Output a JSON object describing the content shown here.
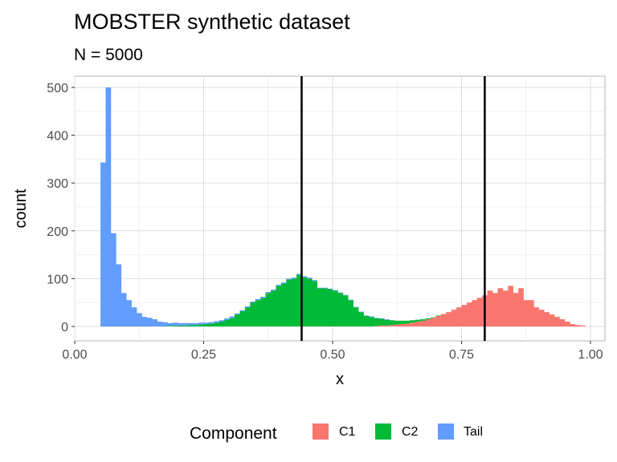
{
  "chart_data": {
    "type": "bar",
    "title": "MOBSTER synthetic dataset",
    "subtitle": "N = 5000",
    "xlabel": "x",
    "ylabel": "count",
    "xlim": [
      0.0,
      1.0
    ],
    "ylim": [
      0,
      500
    ],
    "x_ticks": [
      "0.00",
      "0.25",
      "0.50",
      "0.75",
      "1.00"
    ],
    "y_ticks": [
      "0",
      "100",
      "200",
      "300",
      "400",
      "500"
    ],
    "grid": true,
    "bin_width": 0.01,
    "legend": {
      "title": "Component",
      "position": "bottom"
    },
    "series": [
      {
        "name": "C1",
        "color": "#F8766D",
        "bin_starts": [
          0.58,
          0.59,
          0.6,
          0.61,
          0.62,
          0.63,
          0.64,
          0.65,
          0.66,
          0.67,
          0.68,
          0.69,
          0.7,
          0.71,
          0.72,
          0.73,
          0.74,
          0.75,
          0.76,
          0.77,
          0.78,
          0.79,
          0.8,
          0.81,
          0.82,
          0.83,
          0.84,
          0.85,
          0.86,
          0.87,
          0.88,
          0.89,
          0.9,
          0.91,
          0.92,
          0.93,
          0.94,
          0.95,
          0.96,
          0.97,
          0.98
        ],
        "counts": [
          1,
          2,
          2,
          3,
          4,
          5,
          6,
          8,
          10,
          12,
          15,
          18,
          22,
          26,
          30,
          35,
          40,
          45,
          50,
          55,
          60,
          65,
          75,
          70,
          80,
          75,
          85,
          70,
          80,
          55,
          55,
          40,
          35,
          30,
          25,
          20,
          15,
          10,
          5,
          3,
          2
        ]
      },
      {
        "name": "C2",
        "color": "#00BA38",
        "bin_starts": [
          0.17,
          0.18,
          0.19,
          0.2,
          0.21,
          0.22,
          0.23,
          0.24,
          0.25,
          0.26,
          0.27,
          0.28,
          0.29,
          0.3,
          0.31,
          0.32,
          0.33,
          0.34,
          0.35,
          0.36,
          0.37,
          0.38,
          0.39,
          0.4,
          0.41,
          0.42,
          0.43,
          0.44,
          0.45,
          0.46,
          0.47,
          0.48,
          0.49,
          0.5,
          0.51,
          0.52,
          0.53,
          0.54,
          0.55,
          0.56,
          0.57,
          0.58,
          0.59,
          0.6,
          0.61,
          0.62,
          0.63,
          0.64,
          0.65,
          0.66,
          0.67,
          0.68,
          0.69,
          0.7
        ],
        "counts": [
          1,
          1,
          2,
          2,
          2,
          3,
          3,
          4,
          5,
          6,
          8,
          10,
          14,
          18,
          25,
          32,
          40,
          50,
          55,
          60,
          70,
          75,
          85,
          90,
          98,
          100,
          108,
          103,
          100,
          95,
          80,
          80,
          78,
          75,
          70,
          65,
          55,
          40,
          30,
          22,
          20,
          16,
          14,
          12,
          10,
          8,
          7,
          6,
          5,
          4,
          3,
          2,
          1,
          1
        ]
      },
      {
        "name": "Tail",
        "color": "#619CFF",
        "bin_starts": [
          0.05,
          0.06,
          0.07,
          0.08,
          0.09,
          0.1,
          0.11,
          0.12,
          0.13,
          0.14,
          0.15,
          0.16,
          0.17,
          0.18,
          0.19,
          0.2,
          0.21,
          0.22,
          0.23,
          0.24,
          0.25,
          0.26,
          0.27,
          0.28,
          0.29,
          0.3,
          0.31,
          0.32,
          0.33,
          0.34,
          0.35,
          0.36,
          0.37,
          0.38,
          0.39,
          0.4,
          0.41,
          0.42,
          0.43,
          0.44,
          0.45,
          0.46,
          0.47,
          0.48,
          0.49,
          0.5,
          0.51,
          0.52,
          0.53,
          0.54,
          0.55,
          0.56,
          0.57,
          0.58,
          0.59,
          0.6
        ],
        "counts": [
          343,
          500,
          195,
          130,
          70,
          55,
          40,
          28,
          20,
          18,
          15,
          10,
          8,
          6,
          6,
          5,
          5,
          4,
          4,
          4,
          3,
          3,
          3,
          3,
          3,
          3,
          2,
          2,
          2,
          2,
          2,
          2,
          2,
          2,
          2,
          2,
          2,
          2,
          2,
          2,
          2,
          2,
          1,
          1,
          1,
          1,
          1,
          1,
          1,
          1,
          1,
          1,
          1,
          1,
          1,
          1
        ]
      }
    ],
    "vlines": [
      0.44,
      0.795
    ]
  }
}
